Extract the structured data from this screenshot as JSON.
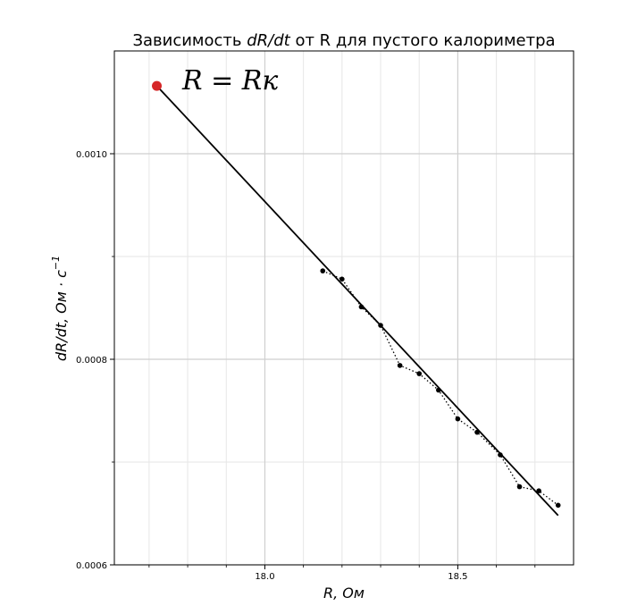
{
  "chart_data": {
    "type": "scatter",
    "title": "Зависимость dR/dt от R для пустого калориметра",
    "title_parts": {
      "prefix": "Зависимость ",
      "var": "dR/dt",
      "suffix": " от R для пустого калориметра"
    },
    "xlabel": "R, Ом",
    "ylabel": "dR/dt, Ом · с",
    "ylabel_exponent": "−1",
    "annotation": "R = Rк",
    "xlim": [
      17.61,
      18.8
    ],
    "ylim": [
      0.0006,
      0.0011
    ],
    "x_ticks": [
      18.0,
      18.5
    ],
    "x_tick_labels": [
      "18.0",
      "18.5"
    ],
    "y_ticks": [
      0.0006,
      0.0008,
      0.001
    ],
    "y_tick_labels": [
      "0.0006",
      "0.0008",
      "0.0010"
    ],
    "x_minor_ticks": [
      17.7,
      17.8,
      17.9,
      18.1,
      18.2,
      18.3,
      18.4,
      18.6,
      18.7
    ],
    "y_minor_ticks": [
      0.0007,
      0.0009
    ],
    "grid": true,
    "series": [
      {
        "kind": "measured",
        "style": "dotted line with point markers",
        "color": "#000000",
        "x": [
          18.15,
          18.2,
          18.25,
          18.3,
          18.35,
          18.4,
          18.45,
          18.5,
          18.55,
          18.61,
          18.66,
          18.71,
          18.76
        ],
        "y": [
          0.000886,
          0.000878,
          0.000851,
          0.000833,
          0.000794,
          0.000786,
          0.00077,
          0.000742,
          0.000729,
          0.000707,
          0.000676,
          0.000672,
          0.000658
        ]
      },
      {
        "kind": "fit",
        "style": "solid line",
        "color": "#000000",
        "x": [
          17.72,
          18.76
        ],
        "y": [
          0.001066,
          0.000648
        ]
      }
    ],
    "highlight_point": {
      "x": 17.72,
      "y": 0.001066,
      "color": "#d62728"
    }
  }
}
